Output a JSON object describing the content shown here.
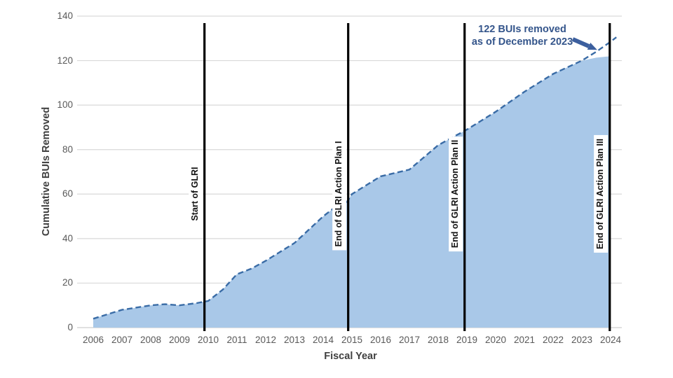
{
  "chart_data": {
    "type": "area",
    "title": "",
    "xlabel": "Fiscal Year",
    "ylabel": "Cumulative BUIs Removed",
    "ylim": [
      0,
      140
    ],
    "yticks": [
      0,
      20,
      40,
      60,
      80,
      100,
      120,
      140
    ],
    "year_ticks": [
      2006,
      2007,
      2008,
      2009,
      2010,
      2011,
      2012,
      2013,
      2014,
      2015,
      2016,
      2017,
      2018,
      2019,
      2020,
      2021,
      2022,
      2023,
      2024
    ],
    "grid": "horizontal",
    "series": [
      {
        "name": "Cumulative BUIs Removed",
        "style": "area-with-dashed-edge",
        "annual_values": [
          [
            2006,
            4
          ],
          [
            2007,
            8
          ],
          [
            2008,
            10
          ],
          [
            2009,
            10
          ],
          [
            2010,
            12
          ],
          [
            2011,
            24
          ],
          [
            2012,
            30
          ],
          [
            2013,
            38
          ],
          [
            2014,
            50
          ],
          [
            2015,
            60
          ],
          [
            2016,
            68
          ],
          [
            2017,
            71
          ],
          [
            2018,
            82
          ],
          [
            2019,
            89
          ],
          [
            2020,
            97
          ],
          [
            2021,
            106
          ],
          [
            2022,
            114
          ],
          [
            2023,
            120
          ],
          [
            2024,
            122
          ]
        ],
        "curve_extra_points": [
          [
            2008.5,
            10.5
          ],
          [
            2009.6,
            11
          ],
          [
            2010.5,
            17
          ],
          [
            2011.5,
            26.5
          ],
          [
            2014.4,
            54
          ],
          [
            2014.75,
            55
          ],
          [
            2023.5,
            121.3
          ]
        ]
      },
      {
        "name": "Dashed projection tail",
        "style": "dashed-line",
        "points": [
          [
            2023,
            120.3
          ],
          [
            2023.5,
            124
          ],
          [
            2024,
            128.5
          ],
          [
            2024.2,
            130.5
          ]
        ]
      }
    ],
    "events": [
      {
        "label": "Start of GLRI",
        "x_year": 2009.87
      },
      {
        "label": "End of GLRI Action Plan I",
        "x_year": 2014.87
      },
      {
        "label": "End of GLRI Action Plan II",
        "x_year": 2018.92
      },
      {
        "label": "End of GLRI Action Plan III",
        "x_year": 2023.97
      }
    ],
    "annotation": {
      "line1": "122 BUIs removed",
      "line2": "as of December 2023"
    }
  },
  "colors": {
    "area_fill": "#A9C8E8",
    "dashed_line": "#3A6CA6",
    "annotation_text": "#34558B",
    "arrow": "#3C5F9E",
    "event_line": "#000000",
    "event_label_text": "#111111",
    "gridline": "#D9D9D9",
    "baseline": "#CFCFCF",
    "tick_text": "#595959",
    "axis_title_text": "#404040"
  }
}
